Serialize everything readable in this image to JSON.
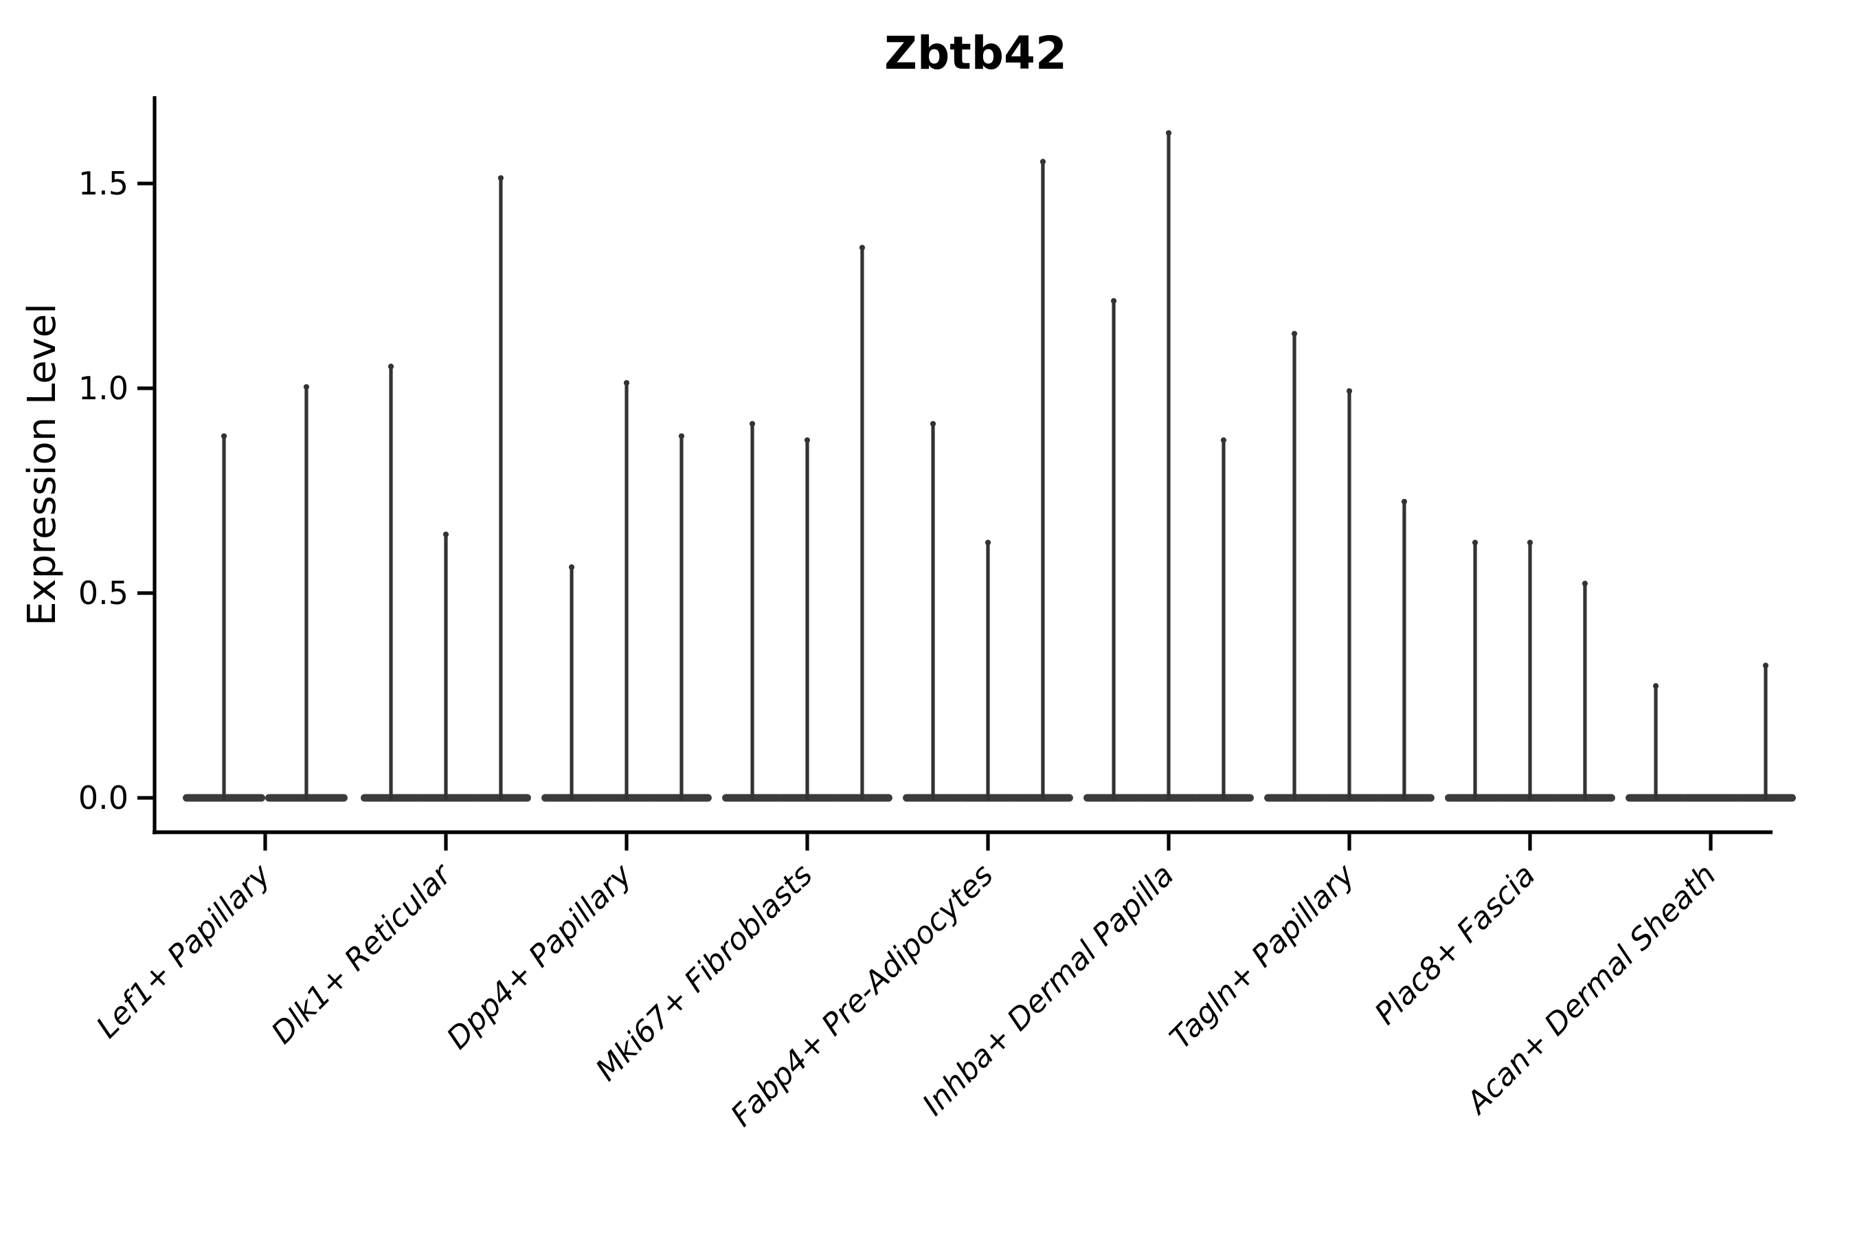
{
  "figure": {
    "title": "Zbtb42",
    "y_axis_label": "Expression Level"
  },
  "chart_data": {
    "type": "violin",
    "title": "Zbtb42",
    "xlabel": "",
    "ylabel": "Expression Level",
    "ylim": [
      0,
      1.71
    ],
    "grid": false,
    "legend": "none",
    "yticks": [
      "0.0",
      "0.5",
      "1.0",
      "1.5"
    ],
    "ytick_values": [
      0.0,
      0.5,
      1.0,
      1.5
    ],
    "categories": [
      "Lef1+ Papillary",
      "Dlk1+ Reticular",
      "Dpp4+ Papillary",
      "Mki67+ Fibroblasts",
      "Fabp4+ Pre-Adipocytes",
      "Inhba+ Dermal Papilla",
      "Tagln+ Papillary",
      "Plac8+ Fascia",
      "Acan+ Dermal Sheath"
    ],
    "violins": [
      {
        "category": "Lef1+ Papillary",
        "offsets": [
          -0.228,
          0.228
        ],
        "maxima": [
          0.89,
          1.01
        ]
      },
      {
        "category": "Dlk1+ Reticular",
        "offsets": [
          -0.304,
          0,
          0.304
        ],
        "maxima": [
          1.06,
          0.65,
          1.52
        ]
      },
      {
        "category": "Dpp4+ Papillary",
        "offsets": [
          -0.304,
          0,
          0.304
        ],
        "maxima": [
          0.57,
          1.02,
          0.89
        ]
      },
      {
        "category": "Mki67+ Fibroblasts",
        "offsets": [
          -0.304,
          0,
          0.304
        ],
        "maxima": [
          0.92,
          0.88,
          1.35
        ]
      },
      {
        "category": "Fabp4+ Pre-Adipocytes",
        "offsets": [
          -0.304,
          0,
          0.304
        ],
        "maxima": [
          0.92,
          0.63,
          1.56
        ]
      },
      {
        "category": "Inhba+ Dermal Papilla",
        "offsets": [
          -0.304,
          0,
          0.304
        ],
        "maxima": [
          1.22,
          1.63,
          0.88
        ]
      },
      {
        "category": "Tagln+ Papillary",
        "offsets": [
          -0.304,
          0,
          0.304
        ],
        "maxima": [
          1.14,
          1.0,
          0.73
        ]
      },
      {
        "category": "Plac8+ Fascia",
        "offsets": [
          -0.304,
          0,
          0.304
        ],
        "maxima": [
          0.63,
          0.63,
          0.53
        ]
      },
      {
        "category": "Acan+ Dermal Sheath",
        "offsets": [
          -0.304,
          0,
          0.304
        ],
        "maxima": [
          0.28,
          0.0,
          0.33
        ]
      }
    ],
    "colors": {
      "violin_needle": "#333333",
      "violin_base": "#3b3b3b",
      "axis": "#000000",
      "text": "#000000",
      "background": "#ffffff"
    }
  }
}
